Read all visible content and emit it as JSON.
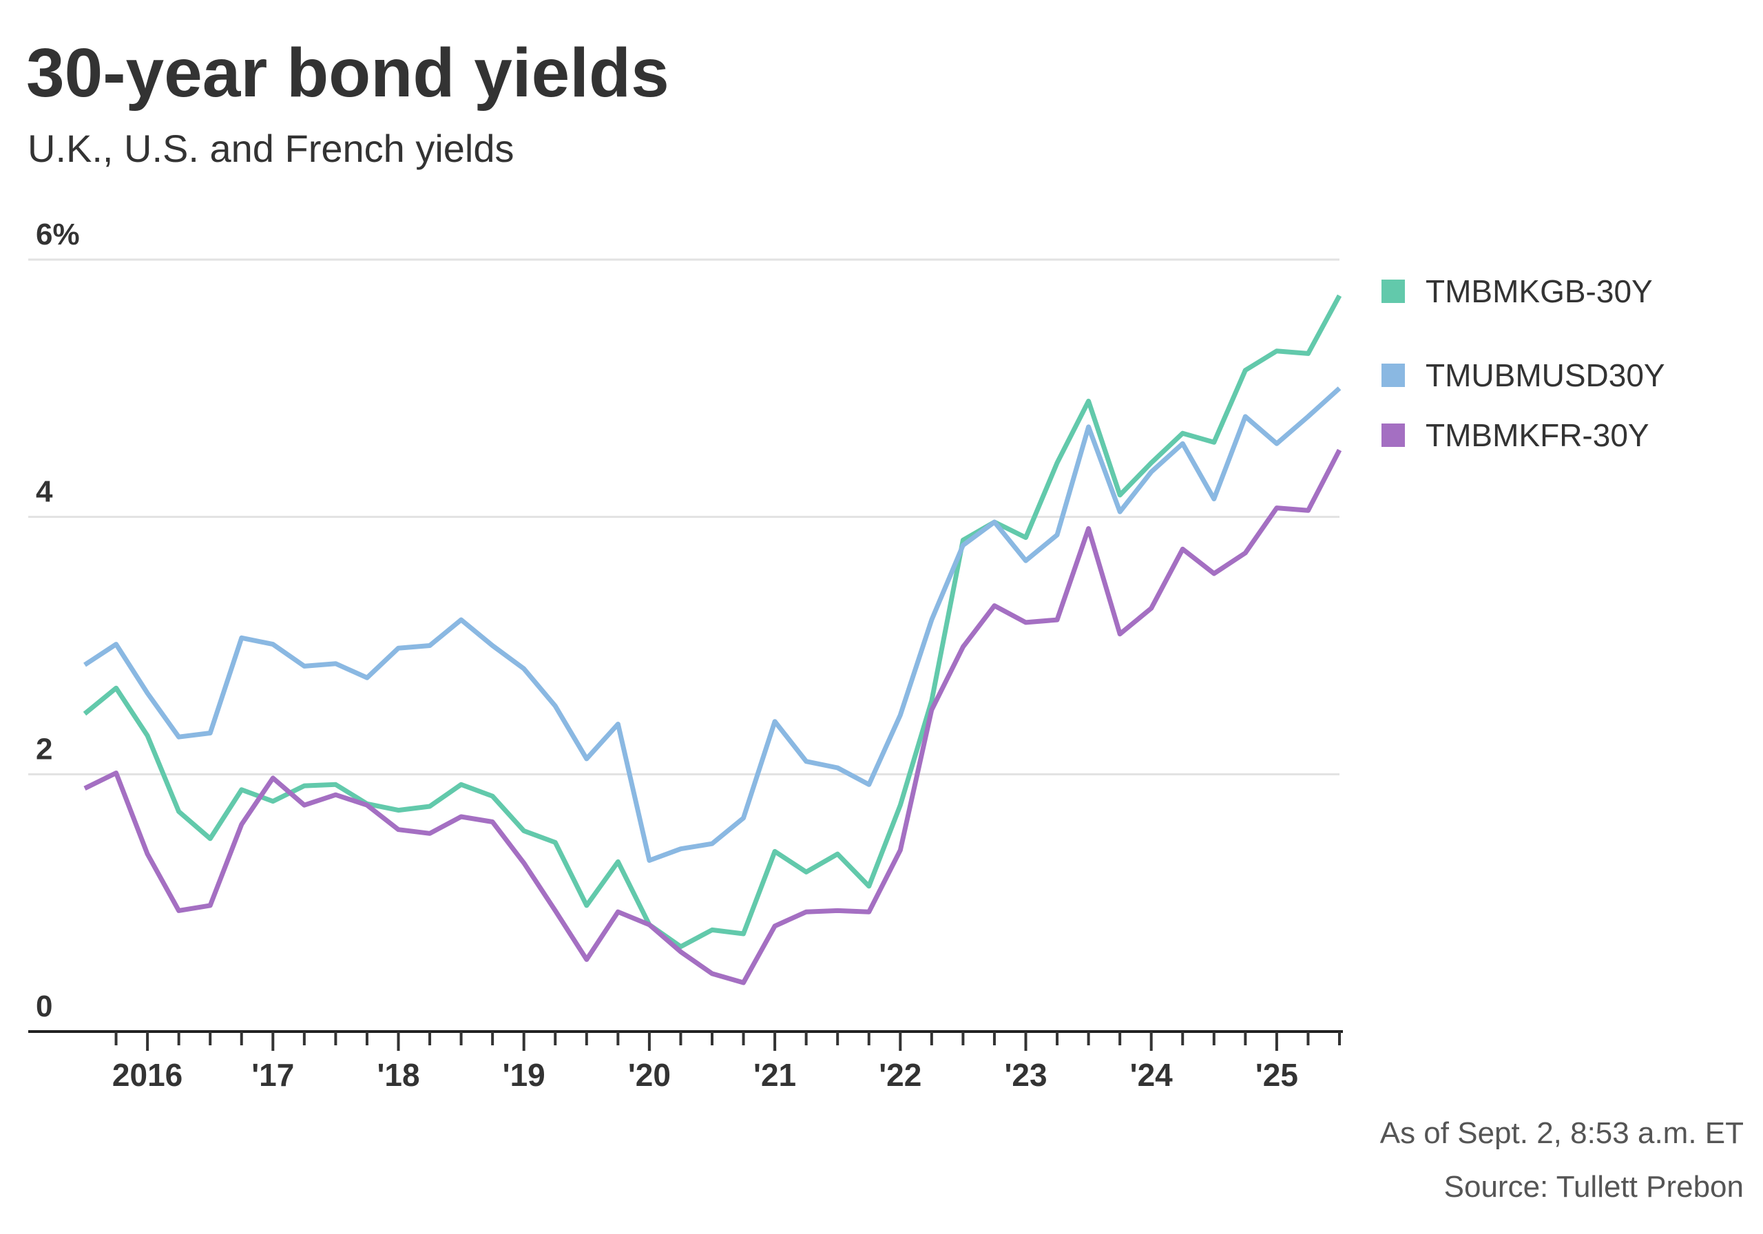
{
  "chart_data": {
    "type": "line",
    "title": "30-year bond yields",
    "subtitle": "U.K., U.S. and French yields",
    "xlabel": "",
    "ylabel": "",
    "ylim": [
      0,
      6
    ],
    "yticks": [
      0,
      2,
      4,
      6
    ],
    "ytick_labels": [
      "0",
      "2",
      "4",
      "6%"
    ],
    "xlim": [
      "2015-07",
      "2025-09"
    ],
    "xticks": [
      2016,
      2017,
      2018,
      2019,
      2020,
      2021,
      2022,
      2023,
      2024,
      2025
    ],
    "xtick_labels": [
      "2016",
      "'17",
      "'18",
      "'19",
      "'20",
      "'21",
      "'22",
      "'23",
      "'24",
      "'25"
    ],
    "grid": true,
    "legend_position": "right",
    "x": [
      "2015-Q3",
      "2015-Q4",
      "2016-Q1",
      "2016-Q2",
      "2016-Q3",
      "2016-Q4",
      "2017-Q1",
      "2017-Q2",
      "2017-Q3",
      "2017-Q4",
      "2018-Q1",
      "2018-Q2",
      "2018-Q3",
      "2018-Q4",
      "2019-Q1",
      "2019-Q2",
      "2019-Q3",
      "2019-Q4",
      "2020-Q1",
      "2020-Q2",
      "2020-Q3",
      "2020-Q4",
      "2021-Q1",
      "2021-Q2",
      "2021-Q3",
      "2021-Q4",
      "2022-Q1",
      "2022-Q2",
      "2022-Q3",
      "2022-Q4",
      "2023-Q1",
      "2023-Q2",
      "2023-Q3",
      "2023-Q4",
      "2024-Q1",
      "2024-Q2",
      "2024-Q3",
      "2024-Q4",
      "2025-Q1",
      "2025-Q2",
      "2025-Q3"
    ],
    "series": [
      {
        "name": "TMBMKGB-30Y",
        "color": "#62c9ab",
        "values": [
          2.47,
          2.67,
          2.3,
          1.71,
          1.5,
          1.88,
          1.79,
          1.91,
          1.92,
          1.77,
          1.72,
          1.75,
          1.92,
          1.83,
          1.56,
          1.47,
          0.98,
          1.32,
          0.83,
          0.66,
          0.79,
          0.76,
          1.4,
          1.24,
          1.38,
          1.13,
          1.76,
          2.57,
          3.82,
          3.96,
          3.84,
          4.42,
          4.9,
          4.17,
          4.42,
          4.65,
          4.58,
          5.14,
          5.29,
          5.27,
          5.72
        ]
      },
      {
        "name": "TMUBMUSD30Y",
        "color": "#8ab8e2",
        "values": [
          2.85,
          3.01,
          2.63,
          2.29,
          2.32,
          3.06,
          3.01,
          2.84,
          2.86,
          2.75,
          2.98,
          3.0,
          3.2,
          3.0,
          2.82,
          2.53,
          2.12,
          2.39,
          1.33,
          1.42,
          1.46,
          1.66,
          2.41,
          2.1,
          2.05,
          1.92,
          2.46,
          3.2,
          3.78,
          3.96,
          3.66,
          3.86,
          4.7,
          4.04,
          4.35,
          4.57,
          4.14,
          4.78,
          4.57,
          4.78,
          5.0
        ]
      },
      {
        "name": "TMBMKFR-30Y",
        "color": "#a46fc2",
        "values": [
          1.89,
          2.01,
          1.38,
          0.94,
          0.98,
          1.61,
          1.97,
          1.76,
          1.84,
          1.76,
          1.57,
          1.54,
          1.67,
          1.63,
          1.31,
          0.94,
          0.56,
          0.93,
          0.83,
          0.62,
          0.45,
          0.38,
          0.82,
          0.93,
          0.94,
          0.93,
          1.41,
          2.5,
          2.99,
          3.31,
          3.18,
          3.2,
          3.91,
          3.09,
          3.29,
          3.75,
          3.56,
          3.72,
          4.07,
          4.05,
          4.52
        ]
      }
    ]
  },
  "footer": {
    "timestamp": "As of Sept. 2, 8:53 a.m. ET",
    "source": "Source: Tullett Prebon"
  }
}
